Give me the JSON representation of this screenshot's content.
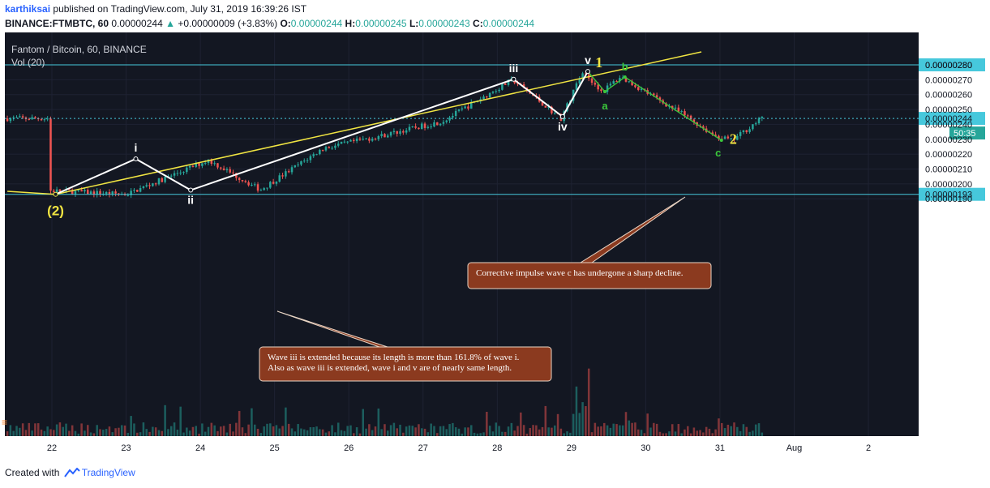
{
  "header": {
    "author": "karthiksai",
    "published_text": "published on TradingView.com, July 31, 2019 16:39:26 IST",
    "symbol": "BINANCE:FTMBTC, 60",
    "last": "0.00000244",
    "change": "+0.00000009 (+3.83%)",
    "o_label": "O:",
    "o": "0.00000244",
    "h_label": "H:",
    "h": "0.00000245",
    "l_label": "L:",
    "l": "0.00000243",
    "c_label": "C:",
    "c": "0.00000244"
  },
  "footer": {
    "created_with": "Created with",
    "brand": "TradingView"
  },
  "colors": {
    "background": "#131722",
    "grid": "#1e2232",
    "up": "#26a69a",
    "down": "#ef5350",
    "trendline": "#f0e442",
    "waves": "#ffffff",
    "corrective": "#3bc83b",
    "hline": "#46c8dc",
    "callout": "#8b3a1f"
  },
  "chart_data": {
    "type": "candlestick",
    "title": "Fantom / Bitcoin, 60, BINANCE",
    "indicator": "Vol (20)",
    "x_ticks": [
      "22",
      "23",
      "24",
      "25",
      "26",
      "27",
      "28",
      "29",
      "30",
      "31",
      "Aug",
      "2"
    ],
    "y_ticks": [
      "0.00000190",
      "0.00000200",
      "0.00000210",
      "0.00000220",
      "0.00000230",
      "0.00000240",
      "0.00000250",
      "0.00000260",
      "0.00000270",
      "0.00000280"
    ],
    "y_range": [
      1.86e-06,
      2.87e-06
    ],
    "price_markers": [
      {
        "label": "0.00000280",
        "value": 2.8e-06
      },
      {
        "label": "0.00000244",
        "value": 2.44e-06
      },
      {
        "label": "0.00000193",
        "value": 1.93e-06
      }
    ],
    "countdown": "50:35",
    "key_points": [
      {
        "t": 0.0,
        "p": 1.955e-06
      },
      {
        "t": 1.05,
        "p": 1.93e-06
      },
      {
        "t": 2.15,
        "p": 2.16e-06
      },
      {
        "t": 2.85,
        "p": 1.96e-06
      },
      {
        "t": 3.7,
        "p": 2.24e-06
      },
      {
        "t": 4.45,
        "p": 2.32e-06
      },
      {
        "t": 5.3,
        "p": 2.42e-06
      },
      {
        "t": 6.25,
        "p": 2.7e-06
      },
      {
        "t": 6.9,
        "p": 2.44e-06
      },
      {
        "t": 7.2,
        "p": 2.76e-06
      },
      {
        "t": 7.45,
        "p": 2.62e-06
      },
      {
        "t": 7.7,
        "p": 2.72e-06
      },
      {
        "t": 8.2,
        "p": 2.57e-06
      },
      {
        "t": 8.6,
        "p": 2.45e-06
      },
      {
        "t": 8.95,
        "p": 2.33e-06
      },
      {
        "t": 9.2,
        "p": 2.29e-06
      },
      {
        "t": 9.6,
        "p": 2.44e-06
      }
    ],
    "trendline": [
      {
        "t": -0.6,
        "p": 1.95e-06
      },
      {
        "t": 0.05,
        "p": 1.93e-06
      },
      {
        "t": 8.75,
        "p": 2.887e-06
      }
    ],
    "impulse_waves": [
      {
        "label": "(2)",
        "t": 0.05,
        "p": 1.93e-06,
        "pos": "below",
        "color": "#f0e442"
      },
      {
        "label": "i",
        "t": 1.13,
        "p": 2.168e-06,
        "pos": "above",
        "color": "#ffffff"
      },
      {
        "label": "ii",
        "t": 1.87,
        "p": 1.958e-06,
        "pos": "below",
        "color": "#ffffff"
      },
      {
        "label": "iii",
        "t": 6.22,
        "p": 2.703e-06,
        "pos": "above",
        "color": "#ffffff"
      },
      {
        "label": "iv",
        "t": 6.88,
        "p": 2.452e-06,
        "pos": "below",
        "color": "#ffffff"
      },
      {
        "label": "v",
        "t": 7.22,
        "p": 2.756e-06,
        "pos": "above",
        "color": "#ffffff"
      }
    ],
    "big_labels": [
      {
        "label": "1",
        "t": 7.37,
        "p": 2.7835e-06,
        "color": "#f0e442"
      },
      {
        "label": "2",
        "t": 9.18,
        "p": 2.268e-06,
        "color": "#f0e442"
      }
    ],
    "corrective_waves": [
      {
        "label": "a",
        "t": 7.45,
        "p": 2.62e-06,
        "pos": "below"
      },
      {
        "label": "b",
        "t": 7.72,
        "p": 2.718e-06,
        "pos": "above"
      },
      {
        "label": "c",
        "t": 9.02,
        "p": 2.293e-06,
        "pos": "left"
      }
    ],
    "annotations": [
      {
        "id": "wave-iii-note",
        "lines": [
          "Wave iii is extended because its length is more than 161.8% of wave i.",
          "Also as wave iii is extended, wave i and v are of nearly same length."
        ]
      },
      {
        "id": "wave-c-note",
        "lines": [
          "Corrective impulse wave c has undergone a sharp decline."
        ]
      }
    ]
  }
}
